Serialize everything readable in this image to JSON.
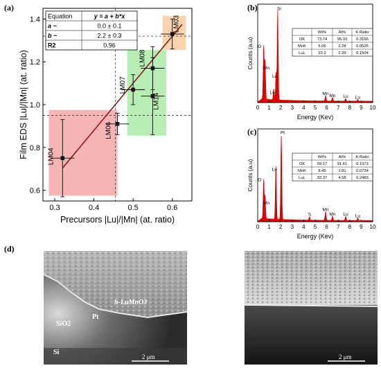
{
  "panels": {
    "a": "(a)",
    "b": "(b)",
    "c": "(c)",
    "d": "(d)"
  },
  "chart_data": [
    {
      "type": "scatter",
      "panel": "(a)",
      "xlabel": "Precursors |Lu|/|Mn| (at. ratio)",
      "ylabel": "Film EDS |Lu|/|Mn| (at. ratio)",
      "xlim": [
        0.27,
        0.65
      ],
      "ylim": [
        0.55,
        1.45
      ],
      "xticks": [
        "0.3",
        "0.4",
        "0.5",
        "0.6"
      ],
      "yticks": [
        "0.6",
        "0.8",
        "1.0",
        "1.2",
        "1.4"
      ],
      "points": [
        {
          "label": "LM04",
          "x": 0.32,
          "y": 0.75,
          "xerr": 0.03,
          "yerr": 0.18
        },
        {
          "label": "LM06",
          "x": 0.46,
          "y": 0.91,
          "xerr": 0.03,
          "yerr": 0.05
        },
        {
          "label": "LM07",
          "x": 0.5,
          "y": 1.07,
          "xerr": 0.03,
          "yerr": 0.07
        },
        {
          "label": "LM08",
          "x": 0.55,
          "y": 1.17,
          "xerr": 0.03,
          "yerr": 0.1
        },
        {
          "label": "LM14",
          "x": 0.55,
          "y": 1.04,
          "xerr": 0.03,
          "yerr": 0.18
        },
        {
          "label": "LM03",
          "x": 0.6,
          "y": 1.33,
          "xerr": 0.03,
          "yerr": 0.07
        }
      ],
      "fit": {
        "a": 0.0,
        "b": 2.2
      },
      "table": {
        "rows": [
          [
            "Equation",
            "y = a + b*x"
          ],
          [
            "a ~",
            "0.0 ± 0.1"
          ],
          [
            "b ~",
            "2.2 ± 0.3"
          ],
          [
            "R2",
            "0.96"
          ]
        ]
      },
      "shaded_regions": [
        {
          "color": "#f4a3a3",
          "x": [
            0.285,
            0.46
          ],
          "y": [
            0.575,
            0.975
          ]
        },
        {
          "color": "#a6e8a0",
          "x": [
            0.485,
            0.585
          ],
          "y": [
            0.855,
            1.255
          ]
        },
        {
          "color": "#f8c99a",
          "x": [
            0.575,
            0.635
          ],
          "y": [
            1.255,
            1.415
          ]
        }
      ],
      "dashed_y": [
        0.95,
        1.32
      ],
      "dashed_x": [
        0.455
      ]
    },
    {
      "type": "line",
      "panel": "(b)",
      "xlabel": "Energy (Kev)",
      "ylabel": "Counts (a.u)",
      "xlim": [
        0,
        10
      ],
      "xticks": [
        "0",
        "1",
        "2",
        "3",
        "4",
        "5",
        "6",
        "7",
        "8",
        "9",
        "10"
      ],
      "peaks": [
        {
          "label": "O",
          "x": 0.52,
          "h": 0.58
        },
        {
          "label": "Mn",
          "x": 0.64,
          "h": 0.42
        },
        {
          "label": "Lu",
          "x": 1.6,
          "h": 0.3
        },
        {
          "label": "Si",
          "x": 1.74,
          "h": 1.0
        },
        {
          "label": "Lu",
          "x": 1.4,
          "h": 0.12
        },
        {
          "label": "Mn",
          "x": 5.9,
          "h": 0.06
        },
        {
          "label": "Mn",
          "x": 6.5,
          "h": 0.04
        },
        {
          "label": "Lu",
          "x": 7.65,
          "h": 0.03
        },
        {
          "label": "Lu",
          "x": 8.7,
          "h": 0.02
        }
      ],
      "table": {
        "header": [
          "",
          "Wt%",
          "At%",
          "K-Ratio"
        ],
        "rows": [
          [
            "OK",
            "73.74",
            "95.33",
            "0.3166"
          ],
          [
            "MnK",
            "6.05",
            "2.28",
            "0.0525"
          ],
          [
            "LuL",
            "20.2",
            "2.39",
            "0.1504"
          ]
        ]
      }
    },
    {
      "type": "line",
      "panel": "(c)",
      "xlabel": "Energy (Kev)",
      "ylabel": "Counts (a.u)",
      "xlim": [
        0,
        10
      ],
      "xticks": [
        "0",
        "1",
        "2",
        "3",
        "4",
        "5",
        "6",
        "7",
        "8",
        "9",
        "10"
      ],
      "peaks": [
        {
          "label": "O",
          "x": 0.52,
          "h": 0.45
        },
        {
          "label": "Mn",
          "x": 0.64,
          "h": 0.26
        },
        {
          "label": "Lu",
          "x": 1.58,
          "h": 0.62
        },
        {
          "label": "Pt",
          "x": 2.05,
          "h": 1.0
        },
        {
          "label": "Ti",
          "x": 4.5,
          "h": 0.04
        },
        {
          "label": "Mn",
          "x": 5.9,
          "h": 0.1
        },
        {
          "label": "Mn",
          "x": 6.5,
          "h": 0.05
        },
        {
          "label": "Lu",
          "x": 7.65,
          "h": 0.05
        },
        {
          "label": "Lu",
          "x": 8.7,
          "h": 0.03
        }
      ],
      "table": {
        "header": [
          "",
          "Wt%",
          "At%",
          "K-Ratio"
        ],
        "rows": [
          [
            "OK",
            "59.17",
            "91.61",
            "0.1973"
          ],
          [
            "MnK",
            "8.45",
            "3.81",
            "0.0734"
          ],
          [
            "LuL",
            "32.37",
            "4.58",
            "0.2483"
          ]
        ]
      }
    }
  ],
  "sem": {
    "left": {
      "film": "h-LuMnO3",
      "pt": "Pt",
      "sio2": "SiO2",
      "si": "Si",
      "scale": "2 μm"
    },
    "right": {
      "scale": "2 μm"
    }
  }
}
